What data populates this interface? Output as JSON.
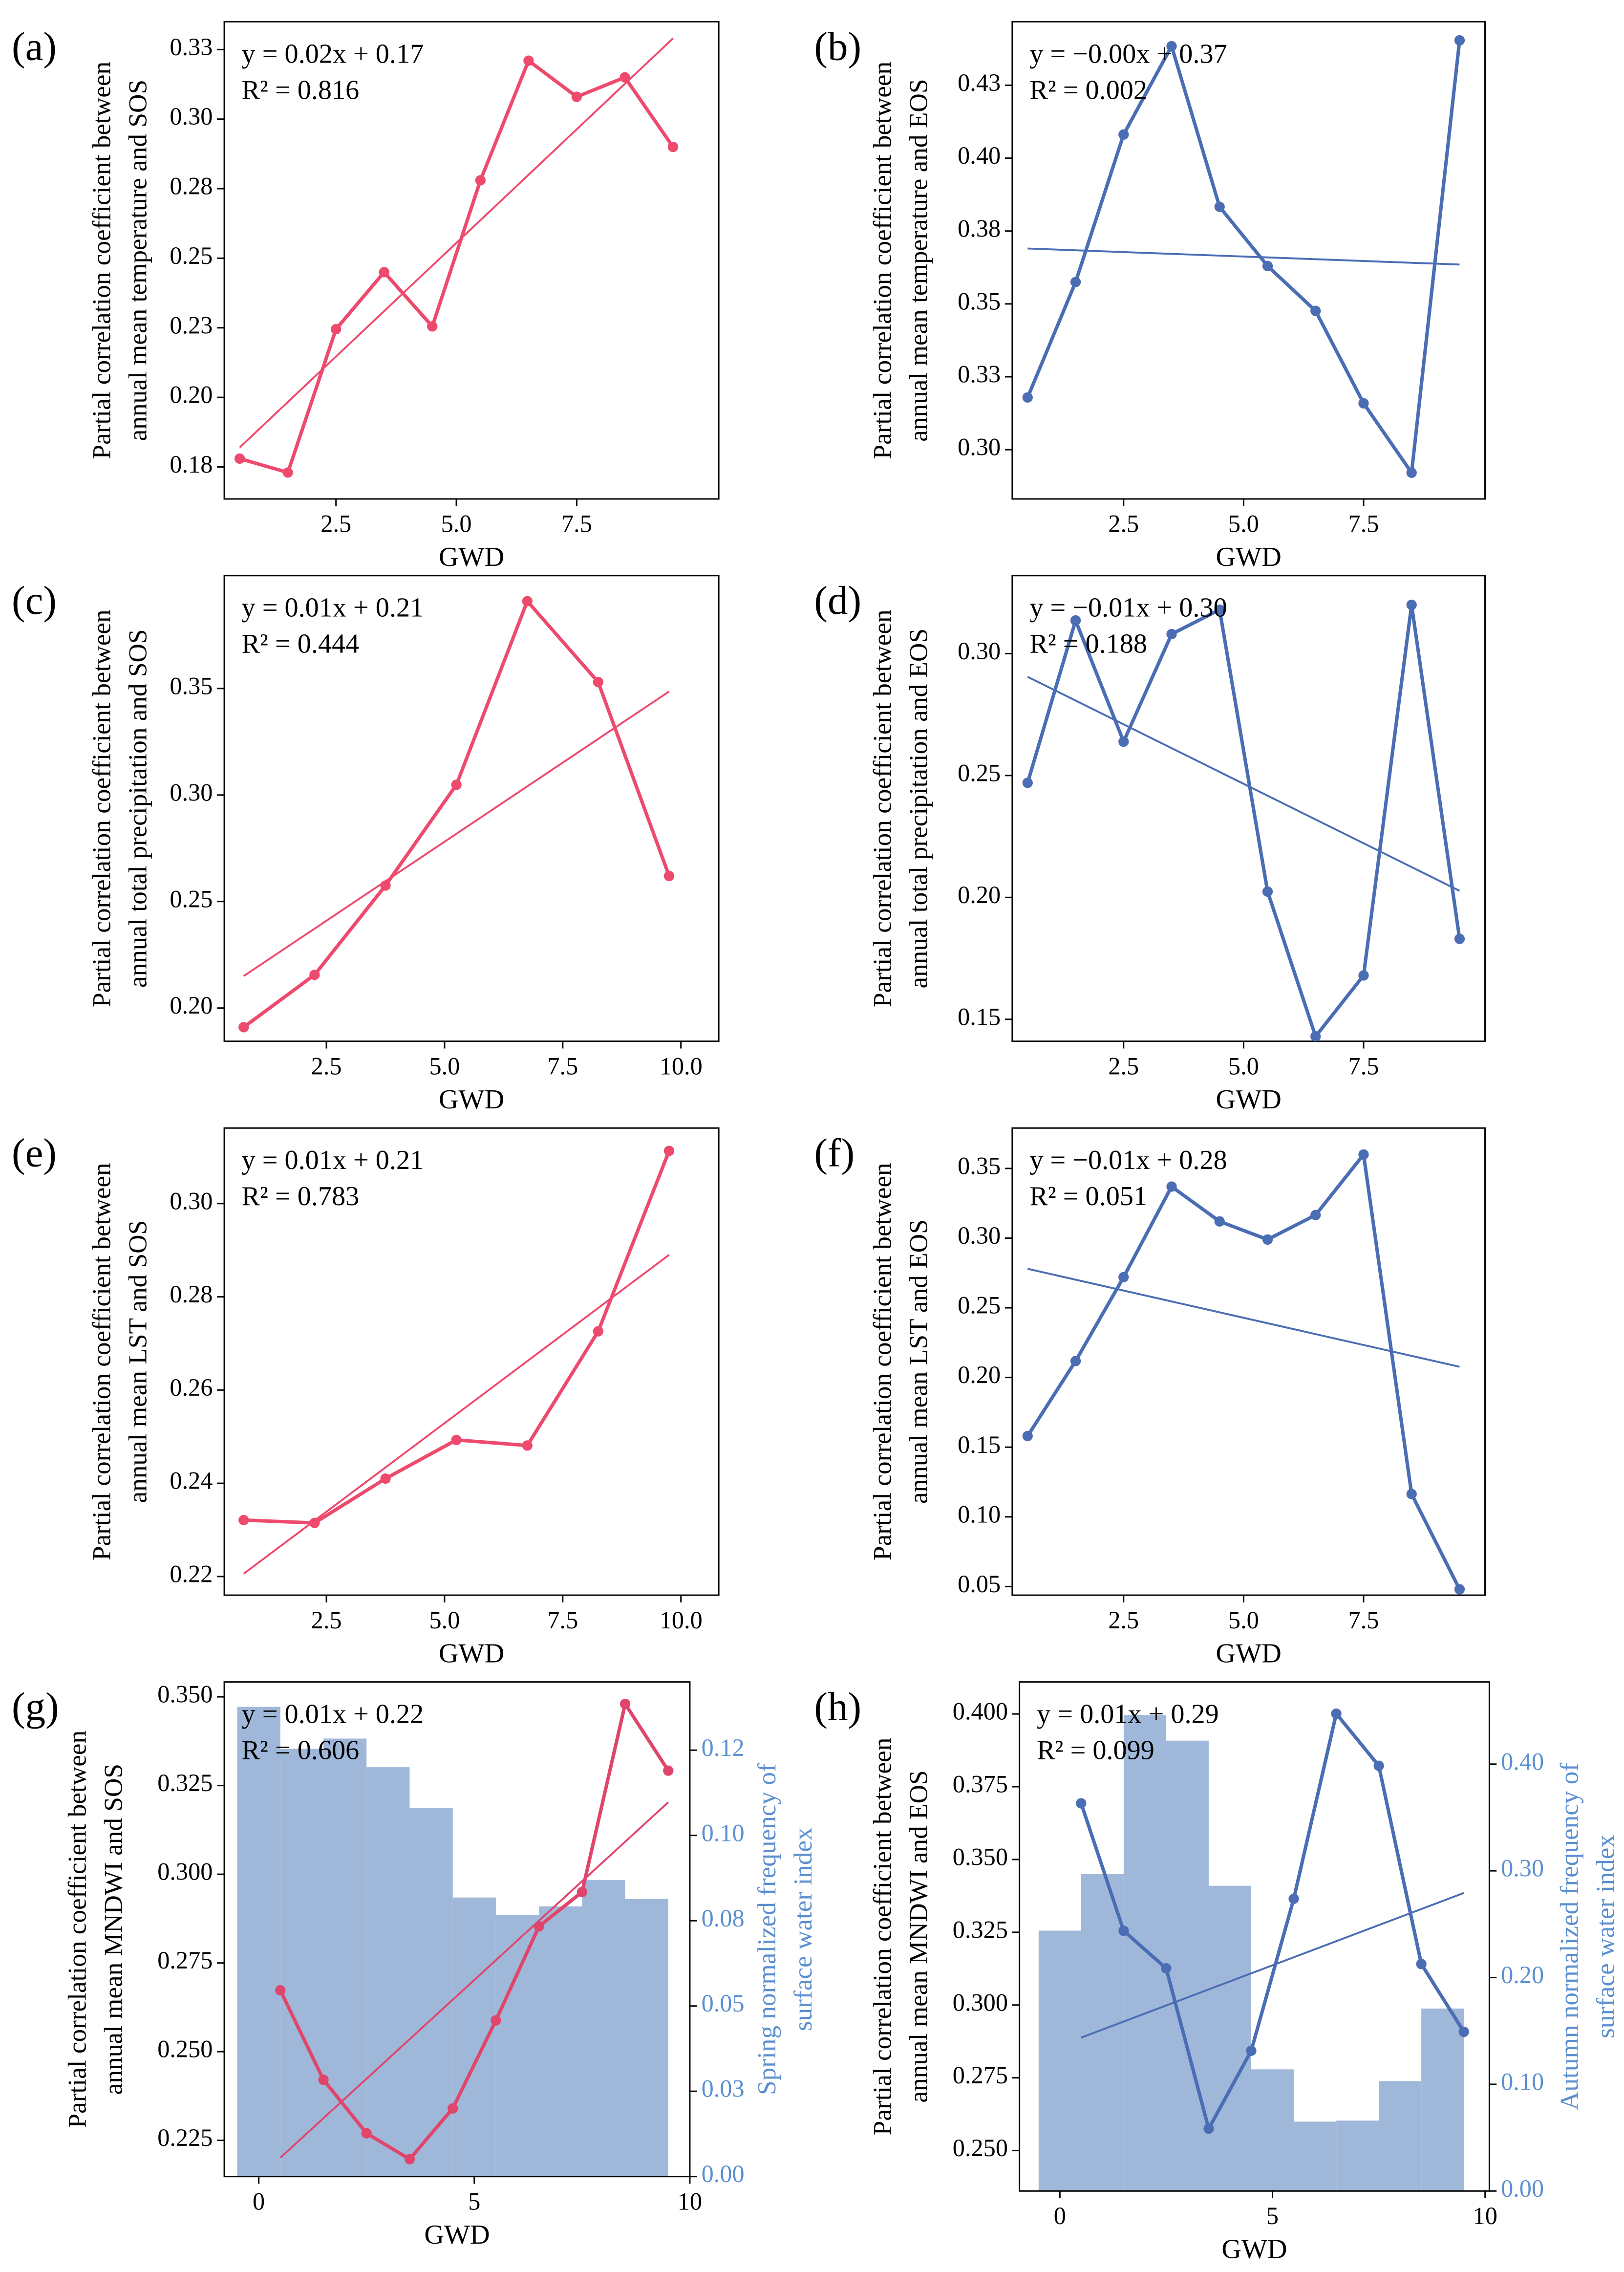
{
  "chart_data": [
    {
      "type": "line",
      "panel_label": "(a)",
      "equation": "y = 0.02x + 0.17",
      "r2": "R² = 0.816",
      "xlabel": "GWD",
      "ylabel": [
        "Partial correlation coefficient between",
        "annual mean temperature and SOS"
      ],
      "x": [
        0.5,
        1.5,
        2.5,
        3.5,
        4.5,
        5.5,
        6.5,
        7.5,
        8.5,
        9.5
      ],
      "values": [
        0.178,
        0.173,
        0.2245,
        0.245,
        0.2255,
        0.278,
        0.321,
        0.308,
        0.315,
        0.29
      ],
      "color": "#ee4a6e",
      "trend": {
        "x": [
          0.5,
          9.5
        ],
        "values": [
          0.182,
          0.329
        ],
        "color": "#ee4a6e"
      },
      "xlim": [
        0.18,
        10.45
      ],
      "xticks": [
        2.5,
        {
          "value": 5,
          "label": "5.0"
        },
        7.5
      ],
      "ylim": [
        0.1635,
        0.335
      ],
      "yticks": [
        {
          "value": 0.175,
          "label": "0.18"
        },
        {
          "value": 0.2,
          "label": "0.20"
        },
        {
          "value": 0.225,
          "label": "0.23"
        },
        0.25,
        {
          "value": 0.275,
          "label": "0.28"
        },
        {
          "value": 0.3,
          "label": "0.30"
        },
        {
          "value": 0.325,
          "label": "0.33"
        }
      ]
    },
    {
      "type": "line",
      "panel_label": "(b)",
      "equation": "y = −0.00x + 0.37",
      "r2": "R² = 0.002",
      "xlabel": "GWD",
      "ylabel": [
        "Partial correlation coefficient between",
        "annual mean temperature and EOS"
      ],
      "x": [
        0.5,
        1.5,
        2.5,
        3.5,
        4.5,
        5.5,
        6.5,
        7.5,
        8.5,
        9.5
      ],
      "values": [
        0.3179,
        0.3575,
        0.4081,
        0.4384,
        0.3833,
        0.363,
        0.3476,
        0.3159,
        0.2921,
        0.4404
      ],
      "color": "#4a6db3",
      "trend": {
        "x": [
          0.5,
          9.5
        ],
        "values": [
          0.369,
          0.3635
        ],
        "color": "#4a6db3"
      },
      "xlim": [
        0.18,
        10.03
      ],
      "xticks": [
        2.5,
        {
          "value": 5,
          "label": "5.0"
        },
        7.5
      ],
      "ylim": [
        0.2831,
        0.4468
      ],
      "yticks": [
        {
          "value": 0.3,
          "label": "0.30"
        },
        {
          "value": 0.325,
          "label": "0.33"
        },
        0.35,
        {
          "value": 0.375,
          "label": "0.38"
        },
        {
          "value": 0.4,
          "label": "0.40"
        },
        {
          "value": 0.425,
          "label": "0.43"
        }
      ]
    },
    {
      "type": "line",
      "panel_label": "(c)",
      "equation": "y = 0.01x + 0.21",
      "r2": "R² = 0.444",
      "xlabel": "GWD",
      "ylabel": [
        "Partial correlation coefficient between",
        "annual total precipitation and SOS"
      ],
      "x": [
        0.75,
        2.25,
        3.75,
        5.25,
        6.75,
        8.25,
        9.75
      ],
      "values": [
        0.191,
        0.2156,
        0.2575,
        0.3048,
        0.391,
        0.353,
        0.262
      ],
      "color": "#ee4a6e",
      "trend": {
        "x": [
          0.75,
          9.75
        ],
        "values": [
          0.215,
          0.3486
        ],
        "color": "#ee4a6e"
      },
      "xlim": [
        0.34,
        10.8
      ],
      "xticks": [
        2.5,
        {
          "value": 5,
          "label": "5.0"
        },
        7.5,
        {
          "value": 10,
          "label": "10.0"
        }
      ],
      "ylim": [
        0.1844,
        0.403
      ],
      "yticks": [
        {
          "value": 0.2,
          "label": "0.20"
        },
        0.25,
        {
          "value": 0.3,
          "label": "0.30"
        },
        0.35
      ]
    },
    {
      "type": "line",
      "panel_label": "(d)",
      "equation": "y = −0.01x + 0.30",
      "r2": "R² = 0.188",
      "xlabel": "GWD",
      "ylabel": [
        "Partial correlation coefficient between",
        "annual total precipitation and EOS"
      ],
      "x": [
        0.5,
        1.5,
        2.5,
        3.5,
        4.5,
        5.5,
        6.5,
        7.5,
        8.5,
        9.5
      ],
      "values": [
        0.247,
        0.3136,
        0.2639,
        0.308,
        0.318,
        0.2024,
        0.143,
        0.168,
        0.32,
        0.183
      ],
      "color": "#4a6db3",
      "trend": {
        "x": [
          0.5,
          9.5
        ],
        "values": [
          0.2905,
          0.2027
        ],
        "color": "#4a6db3"
      },
      "xlim": [
        0.18,
        10.03
      ],
      "xticks": [
        2.5,
        {
          "value": 5,
          "label": "5.0"
        },
        7.5
      ],
      "ylim": [
        0.141,
        0.332
      ],
      "yticks": [
        0.15,
        {
          "value": 0.2,
          "label": "0.20"
        },
        0.25,
        {
          "value": 0.3,
          "label": "0.30"
        }
      ]
    },
    {
      "type": "line",
      "panel_label": "(e)",
      "equation": "y = 0.01x + 0.21",
      "r2": "R² = 0.783",
      "xlabel": "GWD",
      "ylabel": [
        "Partial correlation coefficient between",
        "annual mean LST and SOS"
      ],
      "x": [
        0.75,
        2.25,
        3.75,
        5.25,
        6.75,
        8.25,
        9.75
      ],
      "values": [
        0.2321,
        0.2315,
        0.241,
        0.2493,
        0.2481,
        0.2726,
        0.3113
      ],
      "color": "#ee4a6e",
      "trend": {
        "x": [
          0.75,
          9.75
        ],
        "values": [
          0.2206,
          0.289
        ],
        "color": "#ee4a6e"
      },
      "xlim": [
        0.34,
        10.8
      ],
      "xticks": [
        2.5,
        {
          "value": 5,
          "label": "5.0"
        },
        7.5,
        {
          "value": 10,
          "label": "10.0"
        }
      ],
      "ylim": [
        0.216,
        0.3162
      ],
      "yticks": [
        0.22,
        0.24,
        0.26,
        0.28,
        {
          "value": 0.3,
          "label": "0.30"
        }
      ]
    },
    {
      "type": "line",
      "panel_label": "(f)",
      "equation": "y = −0.01x + 0.28",
      "r2": "R² = 0.051",
      "xlabel": "GWD",
      "ylabel": [
        "Partial correlation coefficient between",
        "annual mean LST and EOS"
      ],
      "x": [
        0.5,
        1.5,
        2.5,
        3.5,
        4.5,
        5.5,
        6.5,
        7.5,
        8.5,
        9.5
      ],
      "values": [
        0.158,
        0.2118,
        0.272,
        0.337,
        0.312,
        0.299,
        0.3166,
        0.36,
        0.1164,
        0.048
      ],
      "color": "#4a6db3",
      "trend": {
        "x": [
          0.5,
          9.5
        ],
        "values": [
          0.278,
          0.2077
        ],
        "color": "#4a6db3"
      },
      "xlim": [
        0.18,
        10.03
      ],
      "xticks": [
        2.5,
        {
          "value": 5,
          "label": "5.0"
        },
        7.5
      ],
      "ylim": [
        0.0438,
        0.379
      ],
      "yticks": [
        0.05,
        {
          "value": 0.1,
          "label": "0.10"
        },
        0.15,
        {
          "value": 0.2,
          "label": "0.20"
        },
        0.25,
        {
          "value": 0.3,
          "label": "0.30"
        },
        0.35
      ]
    },
    {
      "type": "line",
      "panel_label": "(g)",
      "equation": "y = 0.01x + 0.22",
      "r2": "R² = 0.606",
      "xlabel": "GWD",
      "ylabel": [
        "Partial correlation coefficient between",
        "annual mean MNDWI and SOS"
      ],
      "y2label": [
        "Spring normalized frequency of",
        "surface water index"
      ],
      "y2color": "#5b8fd0",
      "x": [
        0.5,
        1.5,
        2.5,
        3.5,
        4.5,
        5.5,
        6.5,
        7.5,
        8.5,
        9.5
      ],
      "values": [
        0.2673,
        0.2421,
        0.227,
        0.2197,
        0.234,
        0.2588,
        0.2853,
        0.295,
        0.348,
        0.3292
      ],
      "color": "#e0456b",
      "trend": {
        "x": [
          0.5,
          9.5
        ],
        "values": [
          0.2201,
          0.3203
        ],
        "color": "#e0456b"
      },
      "bars": {
        "bins": [
          -0.5,
          0.5,
          1.5,
          2.5,
          3.5,
          4.5,
          5.5,
          6.5,
          7.5,
          8.5,
          9.5
        ],
        "values": [
          0.1377,
          0.1254,
          0.1284,
          0.12,
          0.108,
          0.0818,
          0.0767,
          0.0792,
          0.0869,
          0.0814
        ],
        "color": "#9fb8da",
        "axis": "y2"
      },
      "xlim": [
        -0.8,
        10
      ],
      "xticks": [
        0,
        5,
        10
      ],
      "ylim": [
        0.2148,
        0.3542
      ],
      "yticks": [
        0.225,
        {
          "value": 0.25,
          "label": "0.250"
        },
        0.275,
        {
          "value": 0.3,
          "label": "0.300"
        },
        0.325,
        {
          "value": 0.35,
          "label": "0.350"
        }
      ],
      "y2lim": [
        0,
        0.145
      ],
      "y2ticks": [
        {
          "value": 0,
          "label": "0.00"
        },
        {
          "value": 0.025,
          "label": "0.03"
        },
        0.05,
        {
          "value": 0.075,
          "label": "0.08"
        },
        {
          "value": 0.1,
          "label": "0.10"
        },
        {
          "value": 0.125,
          "label": "0.12"
        }
      ]
    },
    {
      "type": "line",
      "panel_label": "(h)",
      "equation": "y = 0.01x + 0.29",
      "r2": "R² = 0.099",
      "xlabel": "GWD",
      "ylabel": [
        "Partial correlation coefficient between",
        "annual mean MNDWI and EOS"
      ],
      "y2label": [
        "Autumn normalized frequency of",
        "surface water index"
      ],
      "y2color": "#5b8fd0",
      "x": [
        0.5,
        1.5,
        2.5,
        3.5,
        4.5,
        5.5,
        6.5,
        7.5,
        8.5,
        9.5
      ],
      "values": [
        0.3693,
        0.3255,
        0.3126,
        0.2575,
        0.2843,
        0.3365,
        0.4001,
        0.3822,
        0.3141,
        0.2908
      ],
      "color": "#4a6db3",
      "trend": {
        "x": [
          0.5,
          9.5
        ],
        "values": [
          0.2888,
          0.3385
        ],
        "color": "#4a6db3"
      },
      "bars": {
        "bins": [
          -0.5,
          0.5,
          1.5,
          2.5,
          3.5,
          4.5,
          5.5,
          6.5,
          7.5,
          8.5,
          9.5
        ],
        "values": [
          0.244,
          0.297,
          0.446,
          0.422,
          0.286,
          0.114,
          0.065,
          0.066,
          0.103,
          0.171
        ],
        "color": "#9fb8da",
        "axis": "y2"
      },
      "xlim": [
        -0.95,
        10.1
      ],
      "xticks": [
        0,
        5,
        10
      ],
      "ylim": [
        0.2361,
        0.411
      ],
      "yticks": [
        {
          "value": 0.25,
          "label": "0.250"
        },
        0.275,
        {
          "value": 0.3,
          "label": "0.300"
        },
        0.325,
        {
          "value": 0.35,
          "label": "0.350"
        },
        0.375,
        {
          "value": 0.4,
          "label": "0.400"
        }
      ],
      "y2lim": [
        0,
        0.477
      ],
      "y2ticks": [
        {
          "value": 0,
          "label": "0.00"
        },
        {
          "value": 0.1,
          "label": "0.10"
        },
        {
          "value": 0.2,
          "label": "0.20"
        },
        {
          "value": 0.3,
          "label": "0.30"
        },
        {
          "value": 0.4,
          "label": "0.40"
        }
      ]
    }
  ]
}
